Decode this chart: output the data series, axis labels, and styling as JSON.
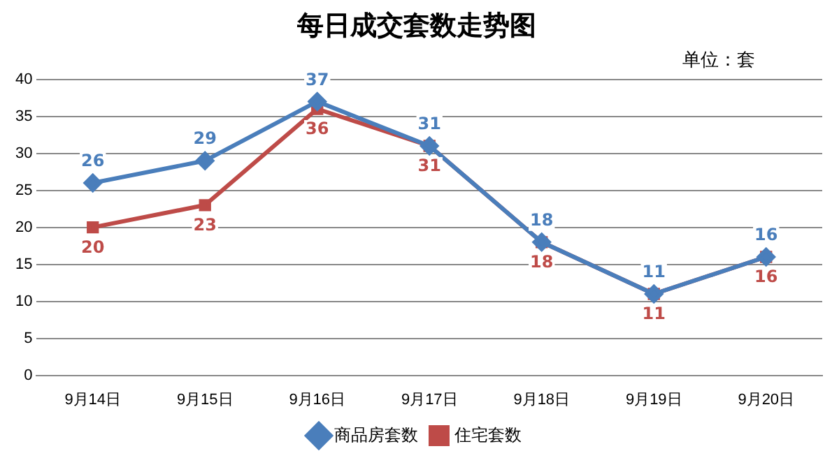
{
  "chart_data": {
    "type": "line",
    "title": "每日成交套数走势图",
    "annotations": [
      "单位：套"
    ],
    "categories": [
      "9月14日",
      "9月15日",
      "9月16日",
      "9月17日",
      "9月18日",
      "9月19日",
      "9月20日"
    ],
    "series": [
      {
        "name": "商品房套数",
        "color": "#4a7ebb",
        "marker": "diamond",
        "values": [
          26,
          29,
          37,
          31,
          18,
          11,
          16
        ]
      },
      {
        "name": "住宅套数",
        "color": "#be4b48",
        "marker": "square",
        "values": [
          20,
          23,
          36,
          31,
          18,
          11,
          16
        ]
      }
    ],
    "ylim": [
      0,
      40
    ],
    "yticks": [
      0,
      5,
      10,
      15,
      20,
      25,
      30,
      35,
      40
    ],
    "grid": "y",
    "legend": "bottom",
    "data_labels": true,
    "line_style": "solid"
  }
}
